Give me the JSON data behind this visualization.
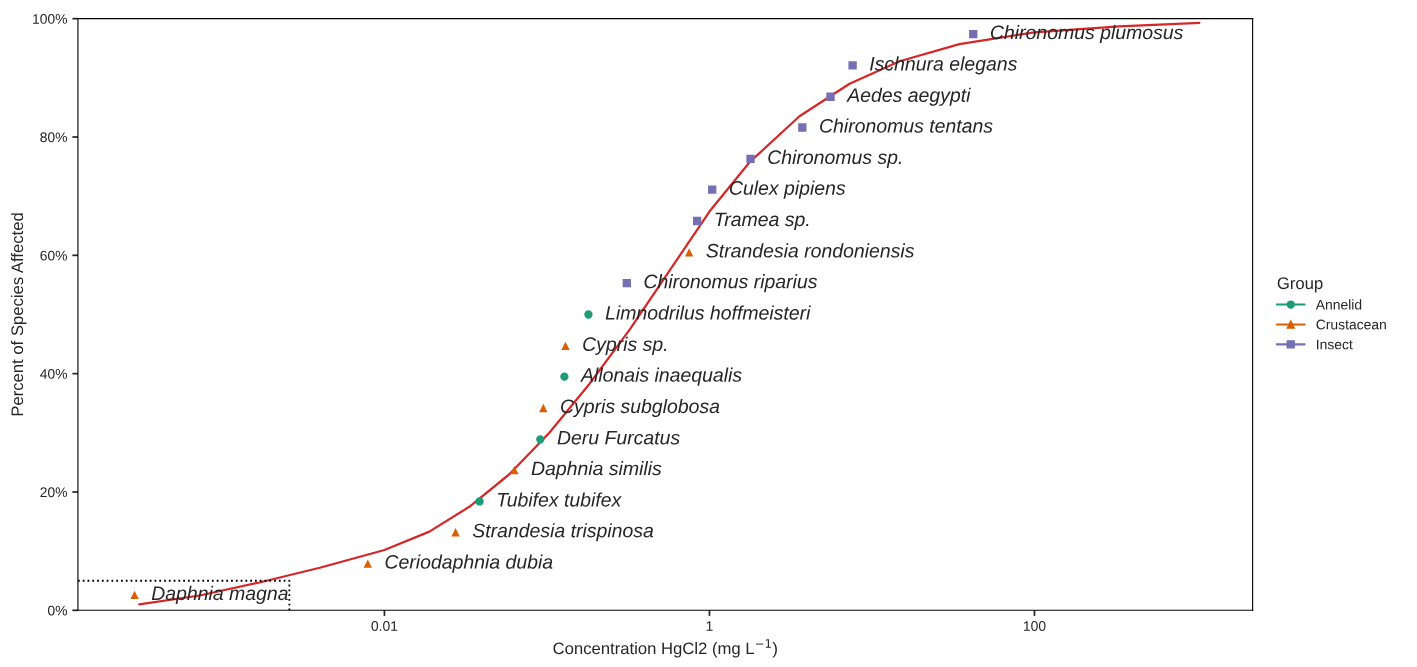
{
  "chart_data": {
    "type": "scatter",
    "xlabel": "Concentration HgCl2 (mg L$^{−1}$)",
    "ylabel": "Percent of Species Affected",
    "legend_title": "Group",
    "legend": "right",
    "log": "x",
    "grid": false,
    "xlim": [
      0.00013,
      2200
    ],
    "xticks": [
      0.01,
      1,
      100
    ],
    "ylim": [
      0,
      100
    ],
    "yticks": [
      {
        "value": 0,
        "label": "0%"
      },
      {
        "value": 20,
        "label": "20%"
      },
      {
        "value": 40,
        "label": "40%"
      },
      {
        "value": 60,
        "label": "60%"
      },
      {
        "value": 80,
        "label": "80%"
      },
      {
        "value": 100,
        "label": "100%"
      }
    ],
    "series": [
      {
        "type": "line",
        "color": "#d62728",
        "marker": "none",
        "line_style": "solid",
        "x": [
          0.00031,
          0.00073,
          0.0017,
          0.004,
          0.01,
          0.0189,
          0.0333,
          0.0587,
          0.1035,
          0.183,
          0.322,
          0.568,
          1,
          1.76,
          3.58,
          7.28,
          14.8,
          34.5,
          100,
          333,
          1035
        ],
        "values": [
          1.0,
          2.5,
          4.7,
          7.2,
          10.2,
          13.3,
          17.5,
          23.0,
          30.0,
          38.3,
          47.4,
          57.4,
          67.4,
          75.7,
          83.5,
          89.0,
          92.8,
          95.7,
          97.7,
          98.7,
          99.3
        ]
      },
      {
        "type": "line",
        "color": "#000000",
        "marker": "none",
        "line_style": "dotted",
        "x": [
          0.00013,
          0.0026,
          0.0026
        ],
        "values": [
          5,
          5,
          0
        ]
      },
      {
        "name": "Annelid",
        "color": "#1b9e77",
        "marker": "circle",
        "x": [
          0.0385,
          0.091,
          0.128,
          0.18
        ],
        "values": [
          18.4,
          28.9,
          39.5,
          50.0
        ]
      },
      {
        "name": "Crustacean",
        "color": "#d95f02",
        "marker": "triangle",
        "x": [
          0.00029,
          0.0079,
          0.0274,
          0.063,
          0.095,
          0.13,
          0.75
        ],
        "values": [
          2.6,
          7.9,
          13.2,
          23.7,
          34.2,
          44.7,
          60.5
        ]
      },
      {
        "name": "Insect",
        "color": "#7570b3",
        "marker": "square",
        "x": [
          0.31,
          0.84,
          1.04,
          1.79,
          3.73,
          5.56,
          7.6,
          42
        ],
        "values": [
          55.3,
          65.8,
          71.1,
          76.3,
          81.6,
          86.8,
          92.1,
          97.4
        ]
      }
    ],
    "annotations": [
      {
        "text": "Daphnia magna",
        "x": 0.00029,
        "y": 2.6
      },
      {
        "text": "Ceriodaphnia dubia",
        "x": 0.0079,
        "y": 7.9
      },
      {
        "text": "Strandesia trispinosa",
        "x": 0.0274,
        "y": 13.2
      },
      {
        "text": "Tubifex tubifex",
        "x": 0.0385,
        "y": 18.4
      },
      {
        "text": "Daphnia similis",
        "x": 0.063,
        "y": 23.7
      },
      {
        "text": "Deru Furcatus",
        "x": 0.091,
        "y": 28.9
      },
      {
        "text": "Cypris subglobosa",
        "x": 0.095,
        "y": 34.2
      },
      {
        "text": "Allonais inaequalis",
        "x": 0.128,
        "y": 39.5
      },
      {
        "text": "Cypris sp.",
        "x": 0.13,
        "y": 44.7
      },
      {
        "text": "Limnodrilus hoffmeisteri",
        "x": 0.18,
        "y": 50.0
      },
      {
        "text": "Chironomus riparius",
        "x": 0.31,
        "y": 55.3
      },
      {
        "text": "Strandesia rondoniensis",
        "x": 0.75,
        "y": 60.5
      },
      {
        "text": "Tramea sp.",
        "x": 0.84,
        "y": 65.8
      },
      {
        "text": "Culex pipiens",
        "x": 1.04,
        "y": 71.1
      },
      {
        "text": "Chironomus sp.",
        "x": 1.79,
        "y": 76.3
      },
      {
        "text": "Chironomus tentans",
        "x": 3.73,
        "y": 81.6
      },
      {
        "text": "Aedes aegypti",
        "x": 5.56,
        "y": 86.8
      },
      {
        "text": "Ischnura elegans",
        "x": 7.6,
        "y": 92.1
      },
      {
        "text": "Chironomus plumosus",
        "x": 42,
        "y": 97.4
      }
    ]
  }
}
